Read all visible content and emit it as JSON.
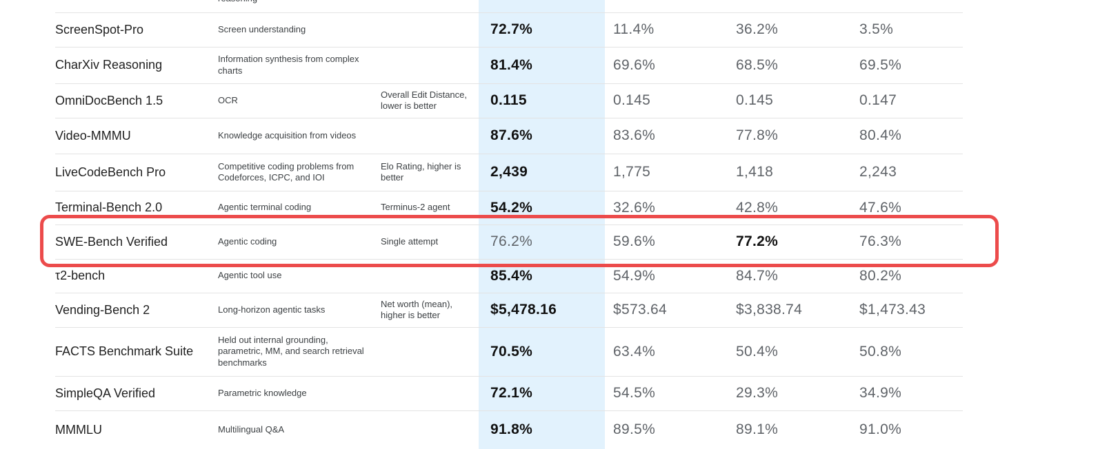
{
  "partial_top": {
    "description": "reasoning",
    "values": [
      "",
      "",
      "",
      ""
    ]
  },
  "rows": [
    {
      "name": "ScreenSpot-Pro",
      "description": "Screen understanding",
      "note": "",
      "values": [
        "72.7%",
        "11.4%",
        "36.2%",
        "3.5%"
      ],
      "bold_index": 0
    },
    {
      "name": "CharXiv Reasoning",
      "description": "Information synthesis from complex charts",
      "note": "",
      "values": [
        "81.4%",
        "69.6%",
        "68.5%",
        "69.5%"
      ],
      "bold_index": 0
    },
    {
      "name": "OmniDocBench 1.5",
      "description": "OCR",
      "note": "Overall Edit Distance, lower is better",
      "values": [
        "0.115",
        "0.145",
        "0.145",
        "0.147"
      ],
      "bold_index": 0
    },
    {
      "name": "Video-MMMU",
      "description": "Knowledge acquisition from videos",
      "note": "",
      "values": [
        "87.6%",
        "83.6%",
        "77.8%",
        "80.4%"
      ],
      "bold_index": 0
    },
    {
      "name": "LiveCodeBench Pro",
      "description": "Competitive coding problems from Codeforces, ICPC, and IOI",
      "note": "Elo Rating, higher is better",
      "values": [
        "2,439",
        "1,775",
        "1,418",
        "2,243"
      ],
      "bold_index": 0
    },
    {
      "name": "Terminal-Bench 2.0",
      "description": "Agentic terminal coding",
      "note": "Terminus-2 agent",
      "values": [
        "54.2%",
        "32.6%",
        "42.8%",
        "47.6%"
      ],
      "bold_index": 0
    },
    {
      "name": "SWE-Bench Verified",
      "description": "Agentic coding",
      "note": "Single attempt",
      "values": [
        "76.2%",
        "59.6%",
        "77.2%",
        "76.3%"
      ],
      "bold_index": 2
    },
    {
      "name": "τ2-bench",
      "description": "Agentic tool use",
      "note": "",
      "values": [
        "85.4%",
        "54.9%",
        "84.7%",
        "80.2%"
      ],
      "bold_index": 0
    },
    {
      "name": "Vending-Bench 2",
      "description": "Long-horizon agentic tasks",
      "note": "Net worth (mean), higher is better",
      "values": [
        "$5,478.16",
        "$573.64",
        "$3,838.74",
        "$1,473.43"
      ],
      "bold_index": 0
    },
    {
      "name": "FACTS Benchmark Suite",
      "description": "Held out internal grounding, parametric, MM, and search retrieval benchmarks",
      "note": "",
      "values": [
        "70.5%",
        "63.4%",
        "50.4%",
        "50.8%"
      ],
      "bold_index": 0
    },
    {
      "name": "SimpleQA Verified",
      "description": "Parametric knowledge",
      "note": "",
      "values": [
        "72.1%",
        "54.5%",
        "29.3%",
        "34.9%"
      ],
      "bold_index": 0
    },
    {
      "name": "MMMLU",
      "description": "Multilingual Q&A",
      "note": "",
      "values": [
        "91.8%",
        "89.5%",
        "89.1%",
        "91.0%"
      ],
      "bold_index": 0
    }
  ],
  "colors": {
    "highlight_column": "#e2f2fd",
    "emphasis_outline": "#ec4b4b",
    "divider": "#e3e3e3"
  }
}
